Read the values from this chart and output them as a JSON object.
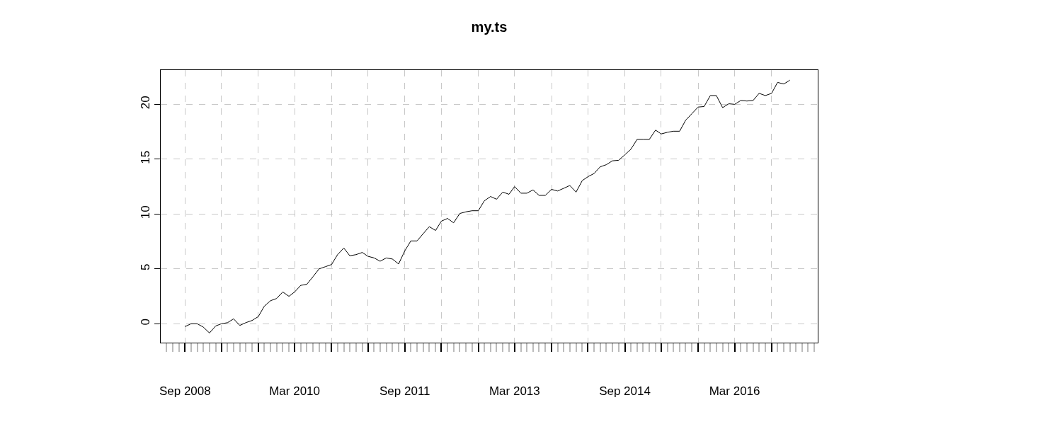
{
  "chart_data": {
    "type": "line",
    "title": "my.ts",
    "x": [
      "2008-09",
      "2008-10",
      "2008-11",
      "2008-12",
      "2009-01",
      "2009-02",
      "2009-03",
      "2009-04",
      "2009-05",
      "2009-06",
      "2009-07",
      "2009-08",
      "2009-09",
      "2009-10",
      "2009-11",
      "2009-12",
      "2010-01",
      "2010-02",
      "2010-03",
      "2010-04",
      "2010-05",
      "2010-06",
      "2010-07",
      "2010-08",
      "2010-09",
      "2010-10",
      "2010-11",
      "2010-12",
      "2011-01",
      "2011-02",
      "2011-03",
      "2011-04",
      "2011-05",
      "2011-06",
      "2011-07",
      "2011-08",
      "2011-09",
      "2011-10",
      "2011-11",
      "2011-12",
      "2012-01",
      "2012-02",
      "2012-03",
      "2012-04",
      "2012-05",
      "2012-06",
      "2012-07",
      "2012-08",
      "2012-09",
      "2012-10",
      "2012-11",
      "2012-12",
      "2013-01",
      "2013-02",
      "2013-03",
      "2013-04",
      "2013-05",
      "2013-06",
      "2013-07",
      "2013-08",
      "2013-09",
      "2013-10",
      "2013-11",
      "2013-12",
      "2014-01",
      "2014-02",
      "2014-03",
      "2014-04",
      "2014-05",
      "2014-06",
      "2014-07",
      "2014-08",
      "2014-09",
      "2014-10",
      "2014-11",
      "2014-12",
      "2015-01",
      "2015-02",
      "2015-03",
      "2015-04",
      "2015-05",
      "2015-06",
      "2015-07",
      "2015-08",
      "2015-09",
      "2015-10",
      "2015-11",
      "2015-12",
      "2016-01",
      "2016-02",
      "2016-03",
      "2016-04",
      "2016-05",
      "2016-06",
      "2016-07",
      "2016-08",
      "2016-09",
      "2016-10",
      "2016-11",
      "2016-12"
    ],
    "series": [
      {
        "color": "#000000",
        "values": [
          -0.26,
          0,
          0,
          -0.3,
          -0.84,
          -0.2,
          0,
          0.1,
          0.45,
          -0.15,
          0.1,
          0.3,
          0.65,
          1.6,
          2.1,
          2.3,
          2.9,
          2.5,
          2.9,
          3.5,
          3.6,
          4.3,
          5.0,
          5.2,
          5.4,
          6.3,
          6.9,
          6.2,
          6.3,
          6.5,
          6.15,
          6.0,
          5.7,
          6.0,
          5.9,
          5.45,
          6.65,
          7.55,
          7.55,
          8.2,
          8.85,
          8.5,
          9.35,
          9.6,
          9.2,
          10.05,
          10.2,
          10.3,
          10.3,
          11.2,
          11.6,
          11.35,
          12.0,
          11.8,
          12.5,
          11.9,
          11.9,
          12.2,
          11.7,
          11.7,
          12.25,
          12.1,
          12.35,
          12.6,
          12.0,
          13.05,
          13.4,
          13.7,
          14.3,
          14.5,
          14.85,
          14.9,
          15.4,
          15.9,
          16.8,
          16.8,
          16.8,
          17.65,
          17.3,
          17.45,
          17.55,
          17.55,
          18.55,
          19.15,
          19.75,
          19.8,
          20.8,
          20.8,
          19.7,
          20.05,
          20.0,
          20.35,
          20.3,
          20.35,
          21.0,
          20.8,
          21.0,
          22.0,
          21.85,
          22.2
        ]
      }
    ],
    "xlim": [
      "2008-05-03",
      "2017-04-19"
    ],
    "xticks": [
      {
        "value": "2008-09",
        "label": "Sep 2008"
      },
      {
        "value": "2009-03",
        "label": null
      },
      {
        "value": "2009-09",
        "label": null
      },
      {
        "value": "2010-03",
        "label": "Mar 2010"
      },
      {
        "value": "2010-09",
        "label": null
      },
      {
        "value": "2011-03",
        "label": null
      },
      {
        "value": "2011-09",
        "label": "Sep 2011"
      },
      {
        "value": "2012-03",
        "label": null
      },
      {
        "value": "2012-09",
        "label": null
      },
      {
        "value": "2013-03",
        "label": "Mar 2013"
      },
      {
        "value": "2013-09",
        "label": null
      },
      {
        "value": "2014-03",
        "label": null
      },
      {
        "value": "2014-09",
        "label": "Sep 2014"
      },
      {
        "value": "2015-03",
        "label": null
      },
      {
        "value": "2015-09",
        "label": null
      },
      {
        "value": "2016-03",
        "label": "Mar 2016"
      },
      {
        "value": "2016-09",
        "label": null
      }
    ],
    "ylim": [
      -1.72,
      23.12
    ],
    "yticks": [
      0,
      5,
      10,
      15,
      20
    ],
    "grid": true,
    "line_style": "solid",
    "marker": "none"
  }
}
